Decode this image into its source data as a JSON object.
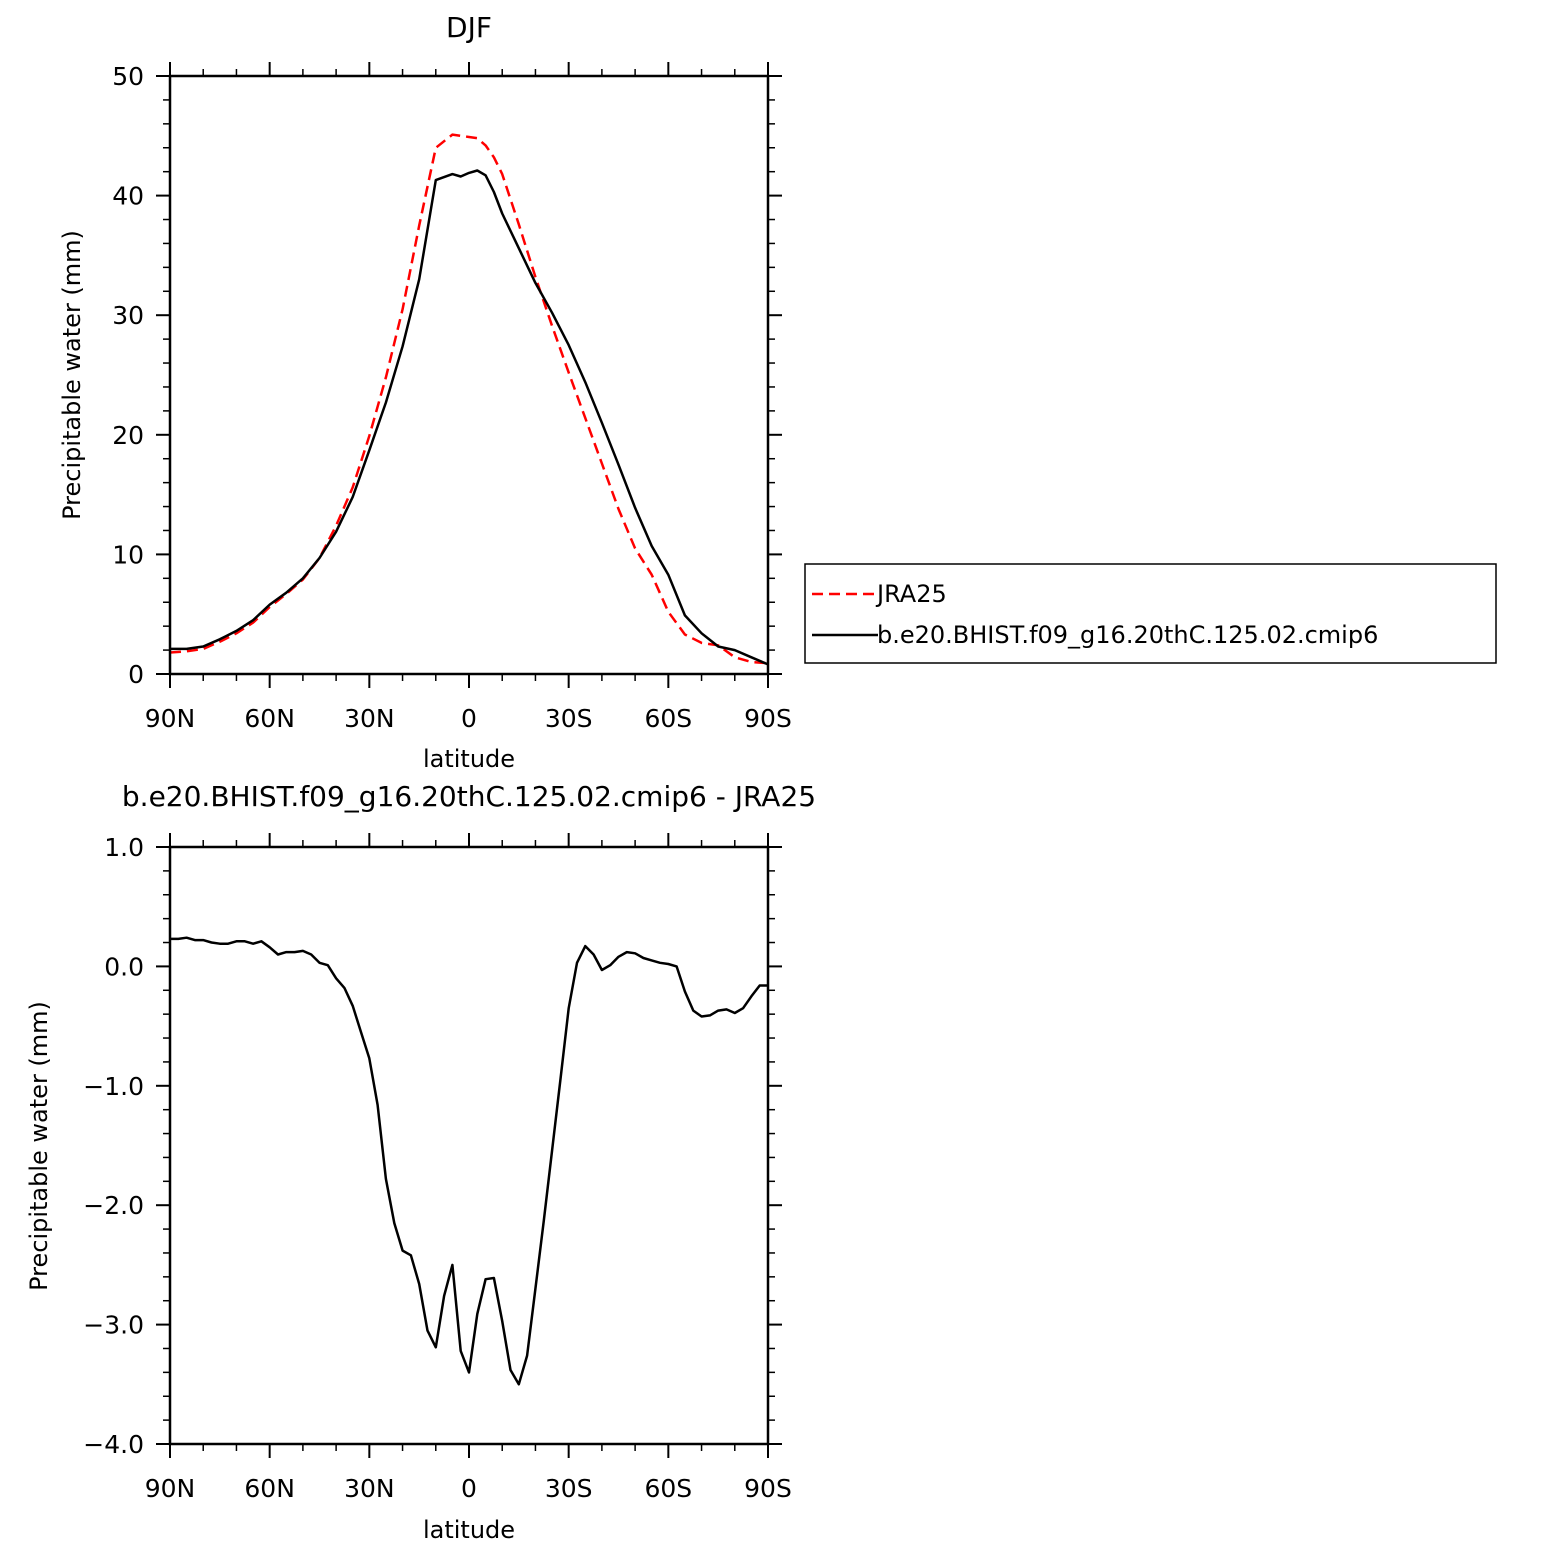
{
  "chart_data": [
    {
      "type": "line",
      "title": "DJF",
      "xlabel": "latitude",
      "ylabel": "Precipitable water (mm)",
      "xlim": [
        90,
        -90
      ],
      "ylim": [
        0,
        50
      ],
      "xticks": [
        90,
        60,
        30,
        0,
        -30,
        -60,
        -90
      ],
      "xtick_labels": [
        "90N",
        "60N",
        "30N",
        "0",
        "30S",
        "60S",
        "90S"
      ],
      "yticks": [
        0,
        10,
        20,
        30,
        40,
        50
      ],
      "ytick_labels": [
        "0",
        "10",
        "20",
        "30",
        "40",
        "50"
      ],
      "grid": false,
      "legend_placement": "right, outside plot",
      "series": [
        {
          "name": "JRA25",
          "color": "#ff0000",
          "dash": "dashed",
          "x": [
            90,
            85,
            80,
            75,
            70,
            65,
            60,
            55,
            50,
            45,
            40,
            35,
            30,
            25,
            20,
            15,
            10,
            5,
            2.5,
            0,
            -2.5,
            -5,
            -7.5,
            -10,
            -15,
            -20,
            -25,
            -30,
            -35,
            -40,
            -45,
            -50,
            -55,
            -60,
            -65,
            -70,
            -75,
            -80,
            -85,
            -90
          ],
          "y": [
            1.8,
            1.9,
            2.1,
            2.7,
            3.4,
            4.3,
            5.6,
            6.7,
            7.9,
            9.7,
            12.4,
            15.6,
            19.9,
            24.8,
            30.5,
            37.5,
            44.0,
            45.1,
            45.0,
            44.9,
            44.8,
            44.2,
            43.2,
            41.8,
            37.6,
            33.2,
            29.1,
            25.2,
            21.4,
            17.6,
            13.8,
            10.5,
            8.3,
            5.2,
            3.3,
            2.6,
            2.4,
            1.4,
            1.0,
            0.9
          ]
        },
        {
          "name": "b.e20.BHIST.f09_g16.20thC.125.02.cmip6",
          "color": "#000000",
          "dash": "solid",
          "x": [
            90,
            85,
            80,
            75,
            70,
            65,
            60,
            55,
            50,
            45,
            40,
            35,
            30,
            25,
            20,
            15,
            10,
            5,
            2.5,
            0,
            -2.5,
            -5,
            -7.5,
            -10,
            -15,
            -20,
            -25,
            -30,
            -35,
            -40,
            -45,
            -50,
            -55,
            -60,
            -65,
            -70,
            -75,
            -80,
            -85,
            -90
          ],
          "y": [
            2.1,
            2.1,
            2.3,
            2.9,
            3.6,
            4.5,
            5.8,
            6.8,
            8.0,
            9.7,
            11.9,
            14.8,
            18.7,
            22.7,
            27.4,
            33.0,
            41.3,
            41.8,
            41.6,
            41.9,
            42.1,
            41.7,
            40.3,
            38.5,
            35.6,
            32.7,
            30.2,
            27.5,
            24.4,
            21.0,
            17.5,
            13.9,
            10.7,
            8.3,
            4.9,
            3.4,
            2.3,
            2.0,
            1.4,
            0.8
          ]
        }
      ]
    },
    {
      "type": "line",
      "title": "b.e20.BHIST.f09_g16.20thC.125.02.cmip6 - JRA25",
      "xlabel": "latitude",
      "ylabel": "Precipitable water (mm)",
      "xlim": [
        90,
        -90
      ],
      "ylim": [
        -4,
        1
      ],
      "xticks": [
        90,
        60,
        30,
        0,
        -30,
        -60,
        -90
      ],
      "xtick_labels": [
        "90N",
        "60N",
        "30N",
        "0",
        "30S",
        "60S",
        "90S"
      ],
      "yticks": [
        1,
        0,
        -1,
        -2,
        -3,
        -4
      ],
      "ytick_labels": [
        "1.0",
        "0.0",
        "−1.0",
        "−2.0",
        "−3.0",
        "−4.0"
      ],
      "grid": false,
      "series": [
        {
          "color": "#000000",
          "dash": "solid",
          "x": [
            90,
            87.5,
            85,
            82.5,
            80,
            77.5,
            75,
            72.5,
            70,
            67.5,
            65,
            62.5,
            60,
            57.5,
            55,
            52.5,
            50,
            47.5,
            45,
            42.5,
            40,
            37.5,
            35,
            32.5,
            30,
            27.5,
            25,
            22.5,
            20,
            17.5,
            15,
            12.5,
            10,
            7.5,
            5,
            2.5,
            0,
            -2.5,
            -5,
            -7.5,
            -10,
            -12.5,
            -15,
            -17.5,
            -20,
            -22.5,
            -25,
            -27.5,
            -30,
            -32.5,
            -35,
            -37.5,
            -40,
            -42.5,
            -45,
            -47.5,
            -50,
            -52.5,
            -55,
            -57.5,
            -60,
            -62.5,
            -65,
            -67.5,
            -70,
            -72.5,
            -75,
            -77.5,
            -80,
            -82.5,
            -85,
            -87.5,
            -90
          ],
          "y": [
            0.23,
            0.23,
            0.24,
            0.22,
            0.22,
            0.2,
            0.19,
            0.19,
            0.21,
            0.21,
            0.19,
            0.21,
            0.16,
            0.1,
            0.12,
            0.12,
            0.13,
            0.1,
            0.03,
            0.01,
            -0.1,
            -0.18,
            -0.33,
            -0.55,
            -0.77,
            -1.16,
            -1.78,
            -2.15,
            -2.38,
            -2.42,
            -2.66,
            -3.05,
            -3.19,
            -2.76,
            -2.5,
            -3.22,
            -3.4,
            -2.91,
            -2.62,
            -2.61,
            -2.97,
            -3.38,
            -3.5,
            -3.26,
            -2.7,
            -2.13,
            -1.54,
            -0.95,
            -0.35,
            0.03,
            0.17,
            0.1,
            -0.03,
            0.01,
            0.08,
            0.12,
            0.11,
            0.07,
            0.05,
            0.03,
            0.02,
            0.0,
            -0.21,
            -0.37,
            -0.42,
            -0.41,
            -0.37,
            -0.36,
            -0.39,
            -0.35,
            -0.25,
            -0.16,
            -0.16
          ]
        }
      ]
    }
  ]
}
